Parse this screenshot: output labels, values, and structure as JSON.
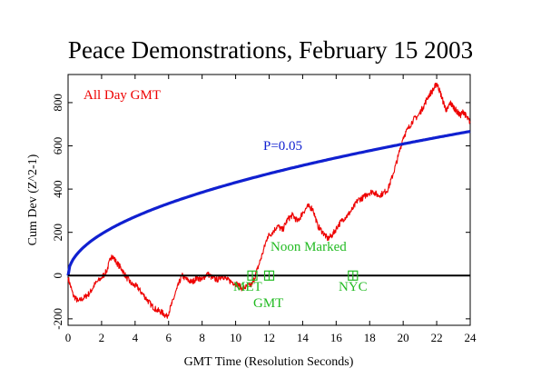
{
  "chart_data": {
    "type": "line",
    "title": "Peace Demonstrations, February 15 2003",
    "xlabel": "GMT Time (Resolution Seconds)",
    "ylabel": "Cum Dev (Z^2-1)",
    "xlim": [
      0,
      24
    ],
    "ylim": [
      -230,
      930
    ],
    "x_ticks": [
      0,
      2,
      4,
      6,
      8,
      10,
      12,
      14,
      16,
      18,
      20,
      22,
      24
    ],
    "y_ticks": [
      -200,
      0,
      200,
      400,
      600,
      800
    ],
    "grid": false,
    "annotations": {
      "series_label": "All Day GMT",
      "p_label": "P=0.05",
      "noon_marked": "Noon Marked",
      "met": "MET",
      "gmt": "GMT",
      "nyc": "NYC"
    },
    "noon_markers": [
      {
        "label": "MET",
        "x": 11.0,
        "y": 0
      },
      {
        "label": "GMT",
        "x": 12.0,
        "y": 0
      },
      {
        "label": "NYC",
        "x": 17.0,
        "y": 0
      }
    ],
    "series": [
      {
        "color": "#ee0000",
        "x": [
          0,
          0.3,
          0.6,
          1.0,
          1.3,
          1.6,
          2.0,
          2.3,
          2.6,
          2.9,
          3.2,
          3.5,
          3.8,
          4.1,
          4.4,
          4.7,
          5.0,
          5.3,
          5.6,
          5.9,
          6.2,
          6.5,
          6.8,
          7.1,
          7.4,
          7.7,
          8.0,
          8.3,
          8.6,
          8.9,
          9.2,
          9.5,
          9.8,
          10.1,
          10.4,
          10.7,
          11.0,
          11.3,
          11.6,
          11.9,
          12.2,
          12.5,
          12.8,
          13.1,
          13.4,
          13.7,
          14.0,
          14.3,
          14.6,
          14.9,
          15.2,
          15.5,
          15.8,
          16.1,
          16.4,
          16.7,
          17.0,
          17.3,
          17.6,
          17.9,
          18.2,
          18.5,
          18.8,
          19.1,
          19.4,
          19.7,
          20.0,
          20.3,
          20.6,
          20.9,
          21.2,
          21.5,
          21.8,
          22.0,
          22.2,
          22.4,
          22.6,
          22.8,
          23.0,
          23.2,
          23.4,
          23.6,
          23.8,
          24.0
        ],
        "y": [
          -10,
          -90,
          -120,
          -100,
          -80,
          -40,
          -10,
          20,
          95,
          60,
          30,
          -10,
          -40,
          -50,
          -80,
          -110,
          -140,
          -160,
          -170,
          -190,
          -130,
          -60,
          0,
          -20,
          -30,
          -10,
          -20,
          10,
          -10,
          -20,
          0,
          -20,
          -30,
          -40,
          -60,
          -50,
          -40,
          30,
          100,
          180,
          200,
          230,
          210,
          260,
          280,
          250,
          290,
          320,
          310,
          230,
          200,
          170,
          190,
          230,
          260,
          280,
          310,
          350,
          360,
          380,
          390,
          370,
          380,
          400,
          470,
          550,
          640,
          680,
          720,
          740,
          780,
          830,
          860,
          890,
          850,
          800,
          760,
          800,
          780,
          760,
          740,
          760,
          730,
          710
        ]
      },
      {
        "name": "P=0.05",
        "color": "#1020d0",
        "formula": "1.96*sqrt(2*N)",
        "x": [
          0,
          0.25,
          0.5,
          1,
          1.5,
          2,
          3,
          4,
          5,
          6,
          7,
          8,
          9,
          10,
          11,
          12,
          13,
          14,
          15,
          16,
          17,
          18,
          19,
          20,
          21,
          22,
          23,
          24
        ],
        "y": [
          0,
          68,
          96,
          136,
          167,
          192,
          236,
          272,
          304,
          333,
          360,
          385,
          408,
          430,
          451,
          471,
          490,
          509,
          527,
          544,
          561,
          577,
          593,
          609,
          624,
          638,
          653,
          667
        ]
      }
    ]
  }
}
